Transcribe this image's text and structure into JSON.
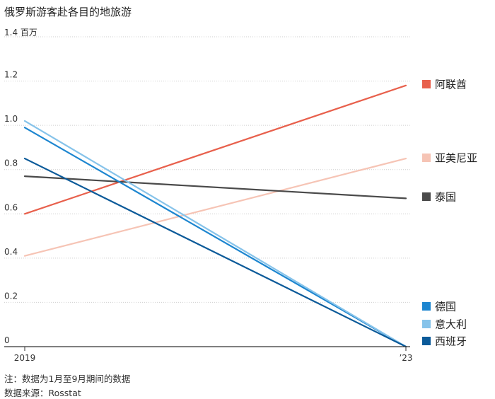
{
  "chart_data": {
    "type": "line",
    "title": "俄罗斯游客赴各目的地旅游",
    "unit_label": "1.4 百万",
    "x": [
      "2019",
      "’23"
    ],
    "ylim": [
      0,
      1.4
    ],
    "yticks": [
      "0",
      "0.2",
      "0.4",
      "0.6",
      "0.8",
      "1.0",
      "1.2"
    ],
    "grid": true,
    "legend": "right",
    "series": [
      {
        "name": "阿联酋",
        "color": "#e8604c",
        "values": [
          0.6,
          1.18
        ]
      },
      {
        "name": "亚美尼亚",
        "color": "#f6c4b5",
        "values": [
          0.41,
          0.85
        ]
      },
      {
        "name": "泰国",
        "color": "#4a4a4a",
        "values": [
          0.77,
          0.67
        ]
      },
      {
        "name": "德国",
        "color": "#1d86d0",
        "values": [
          0.99,
          0.0
        ]
      },
      {
        "name": "意大利",
        "color": "#86c3ea",
        "values": [
          1.02,
          0.0
        ]
      },
      {
        "name": "西班牙",
        "color": "#0b5a99",
        "values": [
          0.85,
          0.0
        ]
      }
    ]
  },
  "notes": {
    "note": "注：数据为1月至9月期间的数据",
    "source": "数据来源：Rosstat"
  }
}
